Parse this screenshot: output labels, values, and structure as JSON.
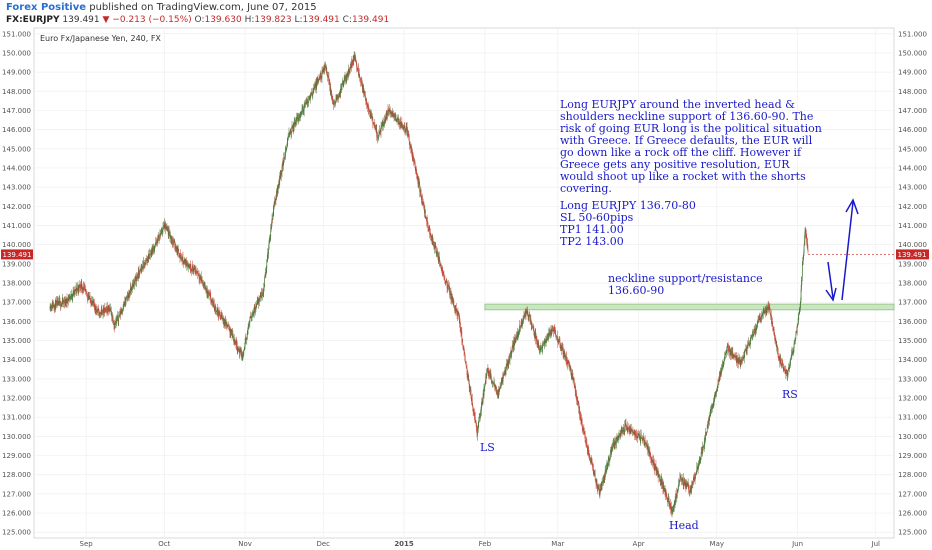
{
  "header": {
    "brand": "Forex Positive",
    "published": "published on TradingView.com, June 07, 2015",
    "symbol": "FX:EURJPY",
    "last": "139.491",
    "change_arrow": "▼",
    "change": "−0.213 (−0.15%)",
    "o_label": "O:",
    "o_value": "139.630",
    "h_label": "H:",
    "h_value": "139.823",
    "l_label": "L:",
    "l_value": "139.491",
    "c_label": "C:",
    "c_value": "139.491"
  },
  "chart_data": {
    "type": "candlestick",
    "title": "Euro Fx/Japanese Yen, 240, FX",
    "y_range": [
      124.7,
      151.3
    ],
    "y_ticks": [
      "125.000",
      "126.000",
      "127.000",
      "128.000",
      "129.000",
      "130.000",
      "131.000",
      "132.000",
      "133.000",
      "134.000",
      "135.000",
      "136.000",
      "137.000",
      "138.000",
      "139.000",
      "140.000",
      "141.000",
      "142.000",
      "143.000",
      "144.000",
      "145.000",
      "146.000",
      "147.000",
      "148.000",
      "149.000",
      "150.000",
      "151.000"
    ],
    "x_labels": [
      "Sep",
      "Oct",
      "Nov",
      "Dec",
      "2015",
      "Feb",
      "Mar",
      "Apr",
      "May",
      "Jun",
      "Jul"
    ],
    "last_price_label": "139.491",
    "price_path": [
      {
        "t": "2014-08-18",
        "v": 136.8
      },
      {
        "t": "2014-08-24",
        "v": 137.0
      },
      {
        "t": "2014-08-30",
        "v": 137.9
      },
      {
        "t": "2014-09-06",
        "v": 136.4
      },
      {
        "t": "2014-09-10",
        "v": 136.7
      },
      {
        "t": "2014-09-12",
        "v": 135.8
      },
      {
        "t": "2014-09-20",
        "v": 138.2
      },
      {
        "t": "2014-09-28",
        "v": 140.1
      },
      {
        "t": "2014-10-01",
        "v": 141.0
      },
      {
        "t": "2014-10-08",
        "v": 139.2
      },
      {
        "t": "2014-10-14",
        "v": 138.5
      },
      {
        "t": "2014-10-20",
        "v": 136.8
      },
      {
        "t": "2014-10-26",
        "v": 135.6
      },
      {
        "t": "2014-10-31",
        "v": 134.1
      },
      {
        "t": "2014-11-03",
        "v": 136.2
      },
      {
        "t": "2014-11-08",
        "v": 137.6
      },
      {
        "t": "2014-11-12",
        "v": 142.0
      },
      {
        "t": "2014-11-18",
        "v": 145.8
      },
      {
        "t": "2014-11-25",
        "v": 147.5
      },
      {
        "t": "2014-12-02",
        "v": 149.3
      },
      {
        "t": "2014-12-05",
        "v": 147.2
      },
      {
        "t": "2014-12-09",
        "v": 148.5
      },
      {
        "t": "2014-12-13",
        "v": 149.8
      },
      {
        "t": "2014-12-18",
        "v": 147.2
      },
      {
        "t": "2014-12-22",
        "v": 145.6
      },
      {
        "t": "2014-12-26",
        "v": 147.0
      },
      {
        "t": "2015-01-02",
        "v": 146.0
      },
      {
        "t": "2015-01-05",
        "v": 144.2
      },
      {
        "t": "2015-01-10",
        "v": 141.0
      },
      {
        "t": "2015-01-16",
        "v": 138.5
      },
      {
        "t": "2015-01-22",
        "v": 136.2
      },
      {
        "t": "2015-01-25",
        "v": 133.5
      },
      {
        "t": "2015-01-29",
        "v": 130.2
      },
      {
        "t": "2015-02-02",
        "v": 133.5
      },
      {
        "t": "2015-02-06",
        "v": 132.2
      },
      {
        "t": "2015-02-12",
        "v": 134.8
      },
      {
        "t": "2015-02-17",
        "v": 136.6
      },
      {
        "t": "2015-02-22",
        "v": 134.5
      },
      {
        "t": "2015-02-27",
        "v": 135.6
      },
      {
        "t": "2015-03-06",
        "v": 133.5
      },
      {
        "t": "2015-03-12",
        "v": 129.5
      },
      {
        "t": "2015-03-17",
        "v": 127.0
      },
      {
        "t": "2015-03-22",
        "v": 129.5
      },
      {
        "t": "2015-03-27",
        "v": 130.5
      },
      {
        "t": "2015-04-03",
        "v": 129.8
      },
      {
        "t": "2015-04-10",
        "v": 127.5
      },
      {
        "t": "2015-04-14",
        "v": 126.1
      },
      {
        "t": "2015-04-17",
        "v": 127.8
      },
      {
        "t": "2015-04-21",
        "v": 127.2
      },
      {
        "t": "2015-04-25",
        "v": 129.0
      },
      {
        "t": "2015-04-29",
        "v": 131.5
      },
      {
        "t": "2015-05-05",
        "v": 134.6
      },
      {
        "t": "2015-05-10",
        "v": 133.8
      },
      {
        "t": "2015-05-17",
        "v": 136.0
      },
      {
        "t": "2015-05-21",
        "v": 136.7
      },
      {
        "t": "2015-05-25",
        "v": 134.0
      },
      {
        "t": "2015-05-28",
        "v": 133.2
      },
      {
        "t": "2015-05-31",
        "v": 135.0
      },
      {
        "t": "2015-06-02",
        "v": 136.8
      },
      {
        "t": "2015-06-03",
        "v": 139.2
      },
      {
        "t": "2015-06-04",
        "v": 140.8
      },
      {
        "t": "2015-06-05",
        "v": 139.5
      }
    ],
    "neckline": {
      "low": 136.6,
      "high": 136.9,
      "from": "2015-02-01",
      "to": "2015-07-08"
    },
    "annotation": {
      "lines": [
        "Long EURJPY around the inverted head &",
        "shoulders neckline support of 136.60-90. The",
        "risk of going EUR long is the political situation",
        "with Greece. If Greece defaults, the EUR will",
        "go down like a rock off the cliff. However if",
        "Greece gets any positive resolution, EUR",
        "would shoot up like a rocket with the shorts",
        "covering."
      ],
      "trade": [
        "Long EURJPY 136.70-80",
        "SL 50-60pips",
        "TP1 141.00",
        "TP2 143.00"
      ]
    },
    "neckline_label": [
      "neckline support/resistance",
      "136.60-90"
    ],
    "labels": {
      "ls": "LS",
      "head": "Head",
      "rs": "RS"
    }
  }
}
